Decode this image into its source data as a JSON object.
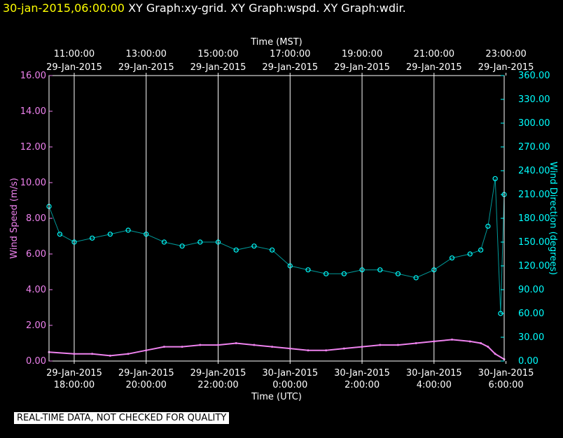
{
  "header": {
    "datetime": "30-jan-2015,06:00:00",
    "graphs": "XY Graph:xy-grid.  XY Graph:wspd.  XY Graph:wdir."
  },
  "footer": {
    "notice": "REAL-TIME DATA, NOT CHECKED FOR QUALITY"
  },
  "colors": {
    "background": "#000000",
    "wind_speed": "#ee82ee",
    "wind_direction": "#00ffff",
    "grid": "#ffffff",
    "title_date": "#ffff00"
  },
  "chart_data": {
    "type": "line",
    "top_axis": {
      "label": "Time (MST)",
      "ticks": [
        {
          "time": "11:00:00",
          "date": "29-Jan-2015"
        },
        {
          "time": "13:00:00",
          "date": "29-Jan-2015"
        },
        {
          "time": "15:00:00",
          "date": "29-Jan-2015"
        },
        {
          "time": "17:00:00",
          "date": "29-Jan-2015"
        },
        {
          "time": "19:00:00",
          "date": "29-Jan-2015"
        },
        {
          "time": "21:00:00",
          "date": "29-Jan-2015"
        },
        {
          "time": "23:00:00",
          "date": "29-Jan-2015"
        }
      ]
    },
    "bottom_axis": {
      "label": "Time (UTC)",
      "ticks": [
        {
          "date": "29-Jan-2015",
          "time": "18:00:00"
        },
        {
          "date": "29-Jan-2015",
          "time": "20:00:00"
        },
        {
          "date": "29-Jan-2015",
          "time": "22:00:00"
        },
        {
          "date": "30-Jan-2015",
          "time": "0:00:00"
        },
        {
          "date": "30-Jan-2015",
          "time": "2:00:00"
        },
        {
          "date": "30-Jan-2015",
          "time": "4:00:00"
        },
        {
          "date": "30-Jan-2015",
          "time": "6:00:00"
        }
      ]
    },
    "left_axis": {
      "label": "Wind Speed (m/s)",
      "range": [
        0,
        16
      ],
      "ticks": [
        "0.00",
        "2.00",
        "4.00",
        "6.00",
        "8.00",
        "10.00",
        "12.00",
        "14.00",
        "16.00"
      ]
    },
    "right_axis": {
      "label": "Wind Direction (degrees)",
      "range": [
        0,
        360
      ],
      "ticks": [
        "0.00",
        "30.00",
        "60.00",
        "90.00",
        "120.00",
        "150.00",
        "180.00",
        "210.00",
        "240.00",
        "270.00",
        "300.00",
        "330.00",
        "360.00"
      ]
    },
    "x_range_utc_hours": [
      17.3,
      29.95
    ],
    "grid": true,
    "series": [
      {
        "axis": "left",
        "style": "line",
        "hours": [
          17.3,
          18.0,
          18.5,
          19.0,
          19.5,
          20.0,
          20.5,
          21.0,
          21.5,
          22.0,
          22.5,
          23.0,
          23.5,
          24.0,
          24.5,
          25.0,
          25.5,
          26.0,
          26.5,
          27.0,
          27.5,
          28.0,
          28.5,
          29.0,
          29.3,
          29.5,
          29.7,
          29.95
        ],
        "values": [
          0.5,
          0.4,
          0.4,
          0.3,
          0.4,
          0.6,
          0.8,
          0.8,
          0.9,
          0.9,
          1.0,
          0.9,
          0.8,
          0.7,
          0.6,
          0.6,
          0.7,
          0.8,
          0.9,
          0.9,
          1.0,
          1.1,
          1.2,
          1.1,
          1.0,
          0.8,
          0.4,
          0.1
        ]
      },
      {
        "axis": "right",
        "style": "points",
        "hours": [
          17.3,
          17.6,
          18.0,
          18.5,
          19.0,
          19.5,
          20.0,
          20.5,
          21.0,
          21.5,
          22.0,
          22.5,
          23.0,
          23.5,
          24.0,
          24.5,
          25.0,
          25.5,
          26.0,
          26.5,
          27.0,
          27.5,
          28.0,
          28.5,
          29.0,
          29.3,
          29.5,
          29.7,
          29.85,
          29.95
        ],
        "values": [
          195,
          160,
          150,
          155,
          160,
          165,
          160,
          150,
          145,
          150,
          150,
          140,
          145,
          140,
          120,
          115,
          110,
          110,
          115,
          115,
          110,
          105,
          115,
          130,
          135,
          140,
          170,
          230,
          60,
          210
        ]
      }
    ]
  }
}
